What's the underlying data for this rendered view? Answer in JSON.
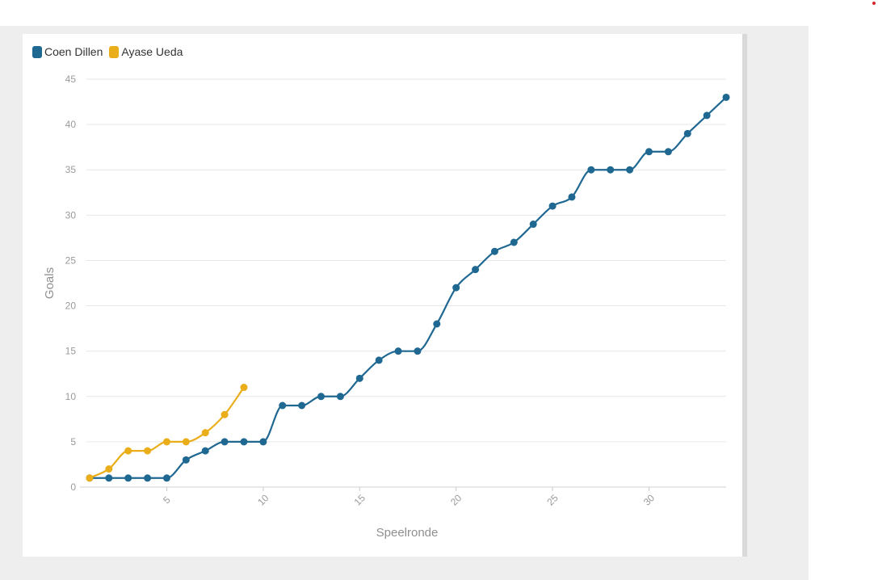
{
  "chart_data": {
    "type": "line",
    "xlabel": "Speelronde",
    "ylabel": "Goals",
    "xlim": [
      0.5,
      34
    ],
    "ylim": [
      0,
      45
    ],
    "x_ticks": [
      5,
      10,
      15,
      20,
      25,
      30
    ],
    "y_ticks": [
      0,
      5,
      10,
      15,
      20,
      25,
      30,
      35,
      40,
      45
    ],
    "grid": "horizontal",
    "legend_position": "top-left",
    "series": [
      {
        "name": "Coen Dillen",
        "color": "#1f6891",
        "x": [
          1,
          2,
          3,
          4,
          5,
          6,
          7,
          8,
          9,
          10,
          11,
          12,
          13,
          14,
          15,
          16,
          17,
          18,
          19,
          20,
          21,
          22,
          23,
          24,
          25,
          26,
          27,
          28,
          29,
          30,
          31,
          32,
          33,
          34
        ],
        "values": [
          1,
          1,
          1,
          1,
          1,
          3,
          4,
          5,
          5,
          5,
          9,
          9,
          10,
          10,
          12,
          14,
          15,
          15,
          18,
          22,
          24,
          26,
          27,
          29,
          31,
          32,
          35,
          35,
          35,
          37,
          37,
          39,
          41,
          43
        ]
      },
      {
        "name": "Ayase Ueda",
        "color": "#eaae1a",
        "x": [
          1,
          2,
          3,
          4,
          5,
          6,
          7,
          8,
          9
        ],
        "values": [
          1,
          2,
          4,
          4,
          5,
          5,
          6,
          8,
          11
        ]
      }
    ]
  }
}
